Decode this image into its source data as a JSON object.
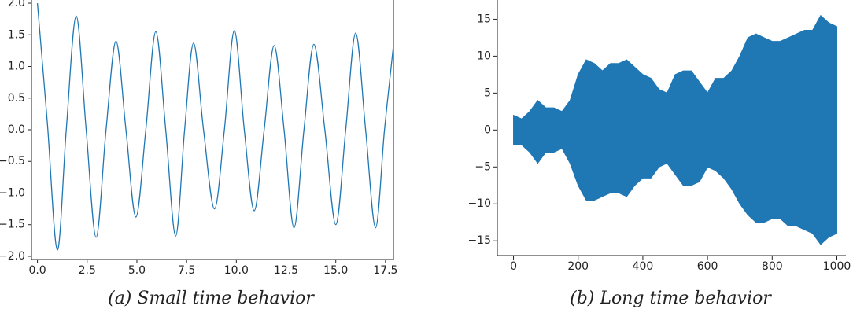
{
  "chart_data": [
    {
      "type": "line",
      "caption": "(a) Small time behavior",
      "color": "#1f77b4",
      "x": [
        0,
        0.5,
        1.0,
        1.45,
        1.95,
        2.45,
        2.95,
        3.45,
        3.95,
        4.45,
        4.95,
        5.45,
        5.95,
        6.45,
        6.95,
        7.4,
        7.85,
        8.35,
        8.9,
        9.4,
        9.9,
        10.4,
        10.9,
        11.4,
        11.9,
        12.4,
        12.9,
        13.4,
        13.9,
        14.45,
        15.0,
        15.5,
        16.0,
        16.5,
        17.0,
        17.45,
        17.9
      ],
      "values": [
        2.0,
        0.1,
        -1.9,
        0,
        1.8,
        0,
        -1.7,
        0,
        1.4,
        0,
        -1.38,
        0,
        1.55,
        0,
        -1.68,
        0,
        1.37,
        0,
        -1.25,
        0,
        1.57,
        0,
        -1.28,
        0,
        1.33,
        0,
        -1.55,
        0,
        1.35,
        0,
        -1.5,
        0,
        1.53,
        0,
        -1.55,
        0,
        1.33
      ],
      "xlim": [
        -0.3,
        17.9
      ],
      "ylim": [
        -2.05,
        2.05
      ],
      "xticks": [
        {
          "value": 0,
          "label": "0.0"
        },
        2.5,
        {
          "value": 5,
          "label": "5.0"
        },
        7.5,
        {
          "value": 10,
          "label": "10.0"
        },
        12.5,
        {
          "value": 15,
          "label": "15.0"
        },
        17.5
      ],
      "yticks": [
        {
          "value": -2,
          "label": "−2.0"
        },
        {
          "value": -1.5,
          "label": "−1.5"
        },
        {
          "value": -1,
          "label": "−1.0"
        },
        {
          "value": -0.5,
          "label": "−0.5"
        },
        {
          "value": 0,
          "label": "0.0"
        },
        0.5,
        {
          "value": 1,
          "label": "1.0"
        },
        1.5,
        {
          "value": 2,
          "label": "2.0"
        }
      ]
    },
    {
      "type": "area",
      "caption": "(b) Long time behavior",
      "color": "#1f77b4",
      "x": [
        0,
        25,
        50,
        75,
        100,
        125,
        150,
        175,
        200,
        225,
        250,
        275,
        300,
        325,
        350,
        375,
        400,
        425,
        450,
        475,
        500,
        525,
        550,
        575,
        600,
        625,
        650,
        675,
        700,
        725,
        750,
        775,
        800,
        825,
        850,
        875,
        900,
        925,
        950,
        975,
        1000
      ],
      "upper": [
        2,
        1.5,
        2.5,
        4,
        3,
        3,
        2.5,
        4,
        7.5,
        9.5,
        9,
        8,
        9,
        9,
        9.5,
        8.5,
        7.5,
        7,
        5.5,
        5,
        7.5,
        8,
        8,
        6.5,
        5,
        7,
        7,
        8,
        10,
        12.5,
        13,
        12.5,
        12,
        12,
        12.5,
        13,
        13.5,
        13.5,
        15.5,
        14.5,
        14
      ],
      "lower": [
        -2,
        -2,
        -3,
        -4.5,
        -3,
        -3,
        -2.5,
        -4.5,
        -7.5,
        -9.5,
        -9.5,
        -9,
        -8.5,
        -8.5,
        -9,
        -7.5,
        -6.5,
        -6.5,
        -5,
        -4.5,
        -6,
        -7.5,
        -7.5,
        -7,
        -5,
        -5.5,
        -6.5,
        -8,
        -10,
        -11.5,
        -12.5,
        -12.5,
        -12,
        -12,
        -13,
        -13,
        -13.5,
        -14,
        -15.5,
        -14.5,
        -14
      ],
      "xlim": [
        -50,
        1028
      ],
      "ylim": [
        -17,
        17.6
      ],
      "xticks": [
        0,
        200,
        400,
        600,
        800,
        1000
      ],
      "yticks": [
        {
          "value": -15,
          "label": "−15"
        },
        {
          "value": -10,
          "label": "−10"
        },
        {
          "value": -5,
          "label": "−5"
        },
        0,
        5,
        10,
        15
      ]
    }
  ]
}
